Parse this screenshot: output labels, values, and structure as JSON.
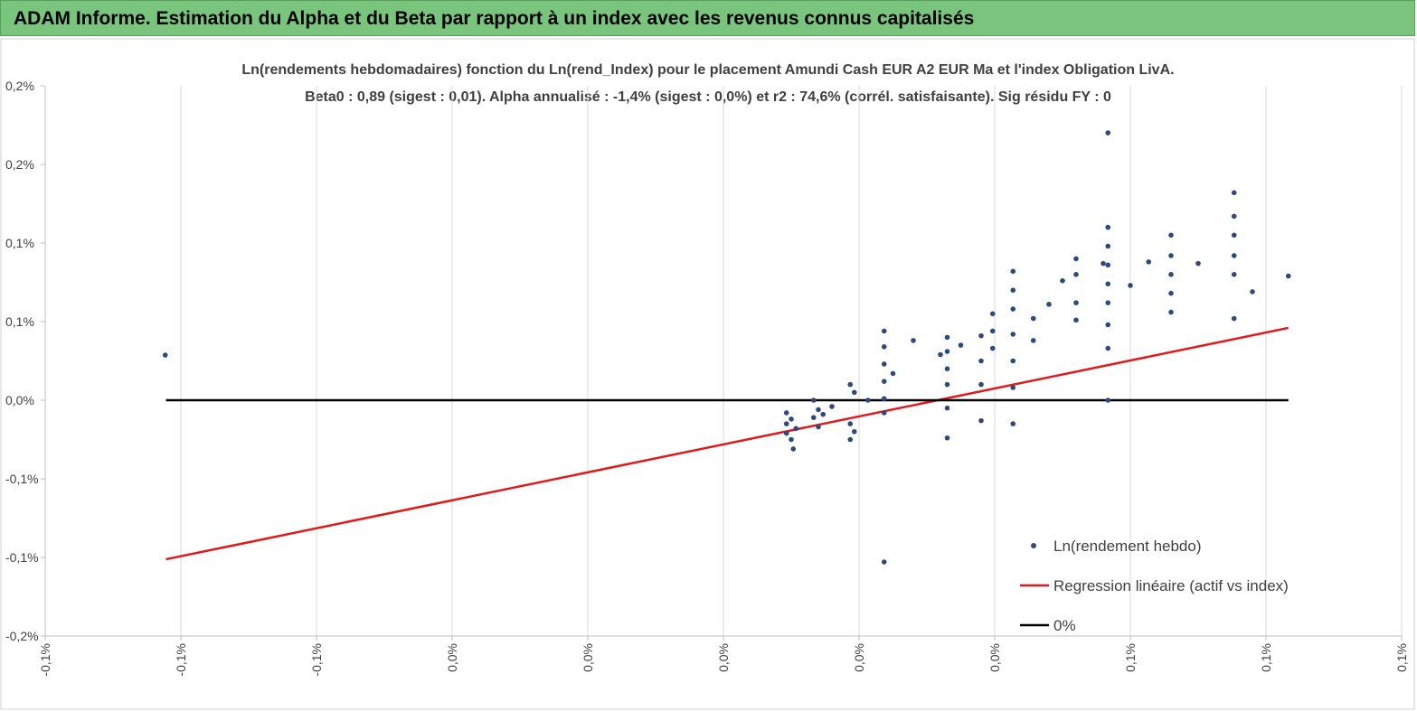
{
  "header": {
    "title": "ADAM Informe. Estimation du Alpha et du Beta par rapport à un index avec les revenus connus capitalisés"
  },
  "chart_data": {
    "type": "scatter",
    "title": "Ln(rendements hebdomadaires) fonction du Ln(rend_Index) pour le placement Amundi Cash EUR A2 EUR Ma et l'index Obligation LivA.",
    "subtitle": "Beta0 : 0,89 (sigest : 0,01). Alpha annualisé : -1,4% (sigest : 0,0%) et r2 : 74,6% (corrél. satisfaisante). Sig résidu FY : 0",
    "xlim": [
      -0.1,
      0.1
    ],
    "ylim": [
      -0.15,
      0.2
    ],
    "xticks": [
      {
        "value": -0.1,
        "label": "-0,1%"
      },
      {
        "value": -0.08,
        "label": "-0,1%"
      },
      {
        "value": -0.06,
        "label": "-0,1%"
      },
      {
        "value": -0.04,
        "label": "0,0%"
      },
      {
        "value": -0.02,
        "label": "0,0%"
      },
      {
        "value": 0,
        "label": "0,0%"
      },
      {
        "value": 0.02,
        "label": "0,0%"
      },
      {
        "value": 0.04,
        "label": "0,0%"
      },
      {
        "value": 0.06,
        "label": "0,1%"
      },
      {
        "value": 0.08,
        "label": "0,1%"
      },
      {
        "value": 0.1,
        "label": "0,1%"
      }
    ],
    "yticks": [
      {
        "value": 0.2,
        "label": "0,2%"
      },
      {
        "value": 0.15,
        "label": "0,2%"
      },
      {
        "value": 0.1,
        "label": "0,1%"
      },
      {
        "value": 0.05,
        "label": "0,1%"
      },
      {
        "value": 0,
        "label": "0,0%"
      },
      {
        "value": -0.05,
        "label": "-0,1%"
      },
      {
        "value": -0.1,
        "label": "-0,1%"
      },
      {
        "value": -0.15,
        "label": "-0,2%"
      }
    ],
    "grid": "x",
    "legend": "bottom-right",
    "series": [
      {
        "name": "Ln(rendement hebdo)",
        "mode": "markers",
        "color": "#2e4a7a",
        "x": [
          -0.0823,
          0.0237,
          0.0567,
          0.0093,
          0.0093,
          0.0093,
          0.01,
          0.01,
          0.0103,
          0.0107,
          0.0133,
          0.0133,
          0.014,
          0.014,
          0.0147,
          0.016,
          0.0187,
          0.0187,
          0.0187,
          0.0193,
          0.0193,
          0.0213,
          0.0237,
          0.0237,
          0.0237,
          0.0237,
          0.0237,
          0.0237,
          0.025,
          0.028,
          0.032,
          0.033,
          0.033,
          0.033,
          0.033,
          0.033,
          0.033,
          0.035,
          0.038,
          0.038,
          0.038,
          0.038,
          0.0397,
          0.0397,
          0.0397,
          0.0427,
          0.0427,
          0.0427,
          0.0427,
          0.0427,
          0.0427,
          0.0427,
          0.0457,
          0.0457,
          0.048,
          0.05,
          0.052,
          0.052,
          0.052,
          0.052,
          0.056,
          0.0567,
          0.0567,
          0.0567,
          0.0567,
          0.0567,
          0.0567,
          0.0567,
          0.0567,
          0.06,
          0.0627,
          0.066,
          0.066,
          0.066,
          0.066,
          0.066,
          0.07,
          0.0753,
          0.0753,
          0.0753,
          0.0753,
          0.0753,
          0.0753,
          0.078,
          0.0833
        ],
        "values": [
          0.0287,
          -0.1029,
          0.1701,
          -0.008,
          -0.015,
          -0.021,
          -0.012,
          -0.025,
          -0.031,
          -0.018,
          0,
          -0.011,
          -0.006,
          -0.017,
          -0.009,
          -0.004,
          0.01,
          -0.015,
          -0.025,
          0.005,
          -0.02,
          0,
          0.044,
          0.034,
          0.023,
          0.012,
          0.001,
          -0.008,
          0.017,
          0.038,
          0.029,
          0.04,
          0.031,
          0.02,
          0.01,
          -0.005,
          -0.024,
          0.035,
          0.041,
          0.025,
          0.01,
          -0.013,
          0.055,
          0.044,
          0.033,
          0.082,
          0.07,
          0.058,
          0.042,
          0.025,
          0.008,
          -0.015,
          0.052,
          0.038,
          0.061,
          0.076,
          0.09,
          0.08,
          0.062,
          0.051,
          0.087,
          0.11,
          0.098,
          0.086,
          0.074,
          0.062,
          0.048,
          0.033,
          0,
          0.073,
          0.088,
          0.105,
          0.092,
          0.08,
          0.068,
          0.056,
          0.087,
          0.132,
          0.117,
          0.105,
          0.092,
          0.08,
          0.052,
          0.069,
          0.079
        ]
      },
      {
        "name": "Regression linéaire (actif vs index)",
        "mode": "lines",
        "color": "#e0191b",
        "x": [
          -0.0822,
          0.0833
        ],
        "values": [
          -0.1012,
          0.046
        ]
      },
      {
        "name": "0%",
        "mode": "lines",
        "color": "#000000",
        "x": [
          -0.0822,
          0.0833
        ],
        "values": [
          0,
          0
        ]
      }
    ]
  }
}
